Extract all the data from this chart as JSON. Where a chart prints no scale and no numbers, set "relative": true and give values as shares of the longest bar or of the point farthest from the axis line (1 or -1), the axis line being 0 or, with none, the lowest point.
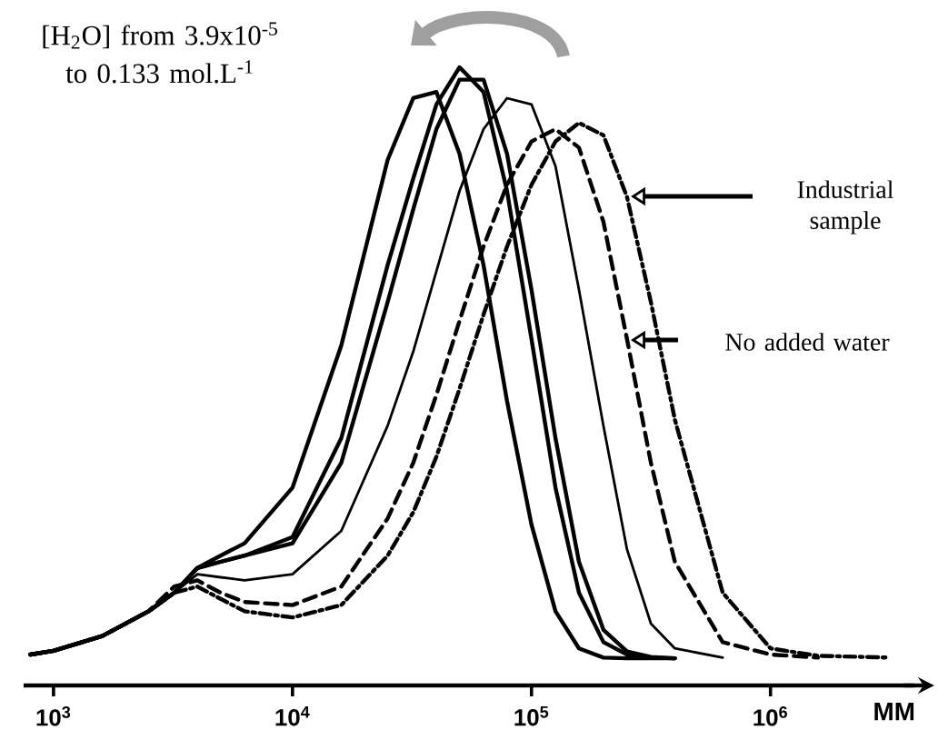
{
  "chart_data": {
    "type": "line",
    "relative": true,
    "log": "x",
    "xlabel": "MM",
    "x": [
      800,
      1000,
      1600,
      2500,
      3200,
      4000,
      5000,
      6300,
      10000,
      16000,
      25000,
      32000,
      40000,
      50000,
      63000,
      79000,
      100000,
      126000,
      158000,
      200000,
      251000,
      316000,
      398000,
      631000,
      1000000,
      1580000,
      3160000
    ],
    "xlim": [
      750,
      4000000
    ],
    "xticks": [
      {
        "value": 1000,
        "label": "10$^{3}$"
      },
      {
        "value": 10000,
        "label": "10$^{4}$"
      },
      {
        "value": 100000,
        "label": "10$^{5}$"
      },
      {
        "value": 1000000,
        "label": "10$^{6}$"
      }
    ],
    "series": [
      {
        "color": "#000000",
        "line_style": "solid",
        "values": [
          0.05,
          0.056,
          0.08,
          0.12,
          0.15,
          0.19,
          0.21,
          0.23,
          0.32,
          0.55,
          0.85,
          0.95,
          0.96,
          0.86,
          0.68,
          0.46,
          0.26,
          0.12,
          0.06,
          0.045,
          0.044,
          0.044,
          0.044,
          null,
          null,
          null,
          null
        ]
      },
      {
        "color": "#000000",
        "line_style": "solid",
        "values": [
          0.05,
          0.056,
          0.08,
          0.12,
          0.15,
          0.19,
          0.2,
          0.21,
          0.24,
          0.4,
          0.68,
          0.82,
          0.94,
          1.0,
          0.96,
          0.8,
          0.56,
          0.32,
          0.15,
          0.07,
          0.05,
          0.045,
          0.044,
          null,
          null,
          null,
          null
        ]
      },
      {
        "color": "#000000",
        "line_style": "solid",
        "values": [
          0.05,
          0.056,
          0.08,
          0.12,
          0.15,
          0.19,
          0.2,
          0.21,
          0.23,
          0.36,
          0.62,
          0.77,
          0.9,
          0.98,
          0.98,
          0.86,
          0.64,
          0.4,
          0.2,
          0.09,
          0.055,
          0.046,
          0.044,
          null,
          null,
          null,
          null
        ]
      },
      {
        "color": "#000000",
        "line_style": "solid",
        "values": [
          0.05,
          0.056,
          0.08,
          0.12,
          0.15,
          0.18,
          0.175,
          0.17,
          0.18,
          0.25,
          0.42,
          0.54,
          0.67,
          0.8,
          0.9,
          0.95,
          0.94,
          0.84,
          0.64,
          0.42,
          0.22,
          0.1,
          0.06,
          0.045,
          null,
          null,
          null
        ]
      },
      {
        "color": "#000000",
        "line_style": "dashed",
        "values": [
          0.05,
          0.056,
          0.08,
          0.12,
          0.16,
          0.17,
          0.15,
          0.135,
          0.13,
          0.16,
          0.27,
          0.36,
          0.47,
          0.59,
          0.71,
          0.81,
          0.88,
          0.9,
          0.87,
          0.75,
          0.56,
          0.36,
          0.2,
          0.07,
          0.05,
          0.045,
          null
        ]
      },
      {
        "color": "#000000",
        "line_style": "dashdot",
        "values": [
          0.05,
          0.056,
          0.08,
          0.12,
          0.15,
          0.16,
          0.14,
          0.12,
          0.11,
          0.13,
          0.21,
          0.28,
          0.37,
          0.48,
          0.6,
          0.71,
          0.81,
          0.88,
          0.91,
          0.89,
          0.79,
          0.62,
          0.43,
          0.15,
          0.06,
          0.048,
          0.045
        ]
      }
    ],
    "annotations": [
      "[H$_{2}$O] from 3.9x10$^{-5}$ to 0.133 mol.L$^{-1}$",
      "Industrial sample",
      "No added water"
    ]
  }
}
